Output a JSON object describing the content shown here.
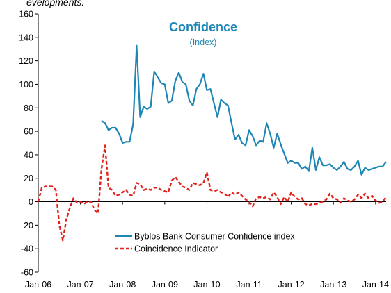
{
  "caption": "evelopments.",
  "chart_data": {
    "type": "line",
    "title": "Confidence",
    "subtitle": "(Index)",
    "title_color": "#1D86B5",
    "xlim": [
      "2006-01",
      "2014-04"
    ],
    "ylim": [
      -60,
      160
    ],
    "y_ticks": [
      -60,
      -40,
      -20,
      0,
      20,
      40,
      60,
      80,
      100,
      120,
      140,
      160
    ],
    "y_tick_labels": [
      "-60",
      "-40",
      "-20",
      "0",
      "20",
      "40",
      "60",
      "80",
      "100",
      "120",
      "140",
      "160"
    ],
    "x_ticks": [
      "2006-01",
      "2007-01",
      "2008-01",
      "2009-01",
      "2010-01",
      "2011-01",
      "2012-01",
      "2013-01",
      "2014-01"
    ],
    "x_tick_labels": [
      "Jan-06",
      "Jan-07",
      "Jan-08",
      "Jan-09",
      "Jan-10",
      "Jan-11",
      "Jan-12",
      "Jan-13",
      "Jan-14"
    ],
    "grid": false,
    "legend_position": "lower-center",
    "series": [
      {
        "name": "Byblos Bank Consumer Confidence index",
        "color": "#1D86B5",
        "style": "solid",
        "points": [
          [
            "2007-07",
            69
          ],
          [
            "2007-08",
            67
          ],
          [
            "2007-09",
            61
          ],
          [
            "2007-10",
            63
          ],
          [
            "2007-11",
            63
          ],
          [
            "2007-12",
            58
          ],
          [
            "2008-01",
            50
          ],
          [
            "2008-02",
            51
          ],
          [
            "2008-03",
            51
          ],
          [
            "2008-04",
            66
          ],
          [
            "2008-05",
            133
          ],
          [
            "2008-06",
            72
          ],
          [
            "2008-07",
            81
          ],
          [
            "2008-08",
            79
          ],
          [
            "2008-09",
            81
          ],
          [
            "2008-10",
            111
          ],
          [
            "2008-11",
            106
          ],
          [
            "2008-12",
            101
          ],
          [
            "2009-01",
            100
          ],
          [
            "2009-02",
            84
          ],
          [
            "2009-03",
            86
          ],
          [
            "2009-04",
            103
          ],
          [
            "2009-05",
            110
          ],
          [
            "2009-06",
            102
          ],
          [
            "2009-07",
            100
          ],
          [
            "2009-08",
            86
          ],
          [
            "2009-09",
            82
          ],
          [
            "2009-10",
            96
          ],
          [
            "2009-11",
            100
          ],
          [
            "2009-12",
            109
          ],
          [
            "2010-01",
            95
          ],
          [
            "2010-02",
            96
          ],
          [
            "2010-03",
            84
          ],
          [
            "2010-04",
            72
          ],
          [
            "2010-05",
            87
          ],
          [
            "2010-06",
            84
          ],
          [
            "2010-07",
            82
          ],
          [
            "2010-08",
            67
          ],
          [
            "2010-09",
            53
          ],
          [
            "2010-10",
            57
          ],
          [
            "2010-11",
            50
          ],
          [
            "2010-12",
            48
          ],
          [
            "2011-01",
            61
          ],
          [
            "2011-02",
            56
          ],
          [
            "2011-03",
            48
          ],
          [
            "2011-04",
            52
          ],
          [
            "2011-05",
            51
          ],
          [
            "2011-06",
            67
          ],
          [
            "2011-07",
            58
          ],
          [
            "2011-08",
            46
          ],
          [
            "2011-09",
            58
          ],
          [
            "2011-10",
            49
          ],
          [
            "2011-11",
            41
          ],
          [
            "2011-12",
            33
          ],
          [
            "2012-01",
            35
          ],
          [
            "2012-02",
            33
          ],
          [
            "2012-03",
            33
          ],
          [
            "2012-04",
            28
          ],
          [
            "2012-05",
            30
          ],
          [
            "2012-06",
            26
          ],
          [
            "2012-07",
            46
          ],
          [
            "2012-08",
            27
          ],
          [
            "2012-09",
            38
          ],
          [
            "2012-10",
            31
          ],
          [
            "2012-11",
            31
          ],
          [
            "2012-12",
            32
          ],
          [
            "2013-01",
            29
          ],
          [
            "2013-02",
            27
          ],
          [
            "2013-03",
            30
          ],
          [
            "2013-04",
            34
          ],
          [
            "2013-05",
            28
          ],
          [
            "2013-06",
            27
          ],
          [
            "2013-07",
            30
          ],
          [
            "2013-08",
            35
          ],
          [
            "2013-09",
            23
          ],
          [
            "2013-10",
            29
          ],
          [
            "2013-11",
            27
          ],
          [
            "2013-12",
            28
          ],
          [
            "2014-01",
            29
          ],
          [
            "2014-02",
            30
          ],
          [
            "2014-03",
            30
          ],
          [
            "2014-04",
            34
          ]
        ]
      },
      {
        "name": "Coincidence Indicator",
        "color": "#E32119",
        "style": "dashed",
        "points": [
          [
            "2006-01",
            0
          ],
          [
            "2006-02",
            12
          ],
          [
            "2006-03",
            13
          ],
          [
            "2006-04",
            13
          ],
          [
            "2006-05",
            13
          ],
          [
            "2006-06",
            10
          ],
          [
            "2006-07",
            -20
          ],
          [
            "2006-08",
            -33
          ],
          [
            "2006-09",
            -15
          ],
          [
            "2006-10",
            -5
          ],
          [
            "2006-11",
            3
          ],
          [
            "2006-12",
            -1
          ],
          [
            "2007-01",
            0
          ],
          [
            "2007-02",
            -2
          ],
          [
            "2007-03",
            0
          ],
          [
            "2007-04",
            0
          ],
          [
            "2007-05",
            -7
          ],
          [
            "2007-06",
            -10
          ],
          [
            "2007-07",
            28
          ],
          [
            "2007-08",
            48
          ],
          [
            "2007-09",
            12
          ],
          [
            "2007-10",
            10
          ],
          [
            "2007-11",
            5
          ],
          [
            "2007-12",
            6
          ],
          [
            "2008-01",
            8
          ],
          [
            "2008-02",
            10
          ],
          [
            "2008-03",
            6
          ],
          [
            "2008-04",
            5
          ],
          [
            "2008-05",
            16
          ],
          [
            "2008-06",
            15
          ],
          [
            "2008-07",
            10
          ],
          [
            "2008-08",
            11
          ],
          [
            "2008-09",
            10
          ],
          [
            "2008-10",
            12
          ],
          [
            "2008-11",
            12
          ],
          [
            "2008-12",
            10
          ],
          [
            "2009-01",
            9
          ],
          [
            "2009-02",
            8
          ],
          [
            "2009-03",
            18
          ],
          [
            "2009-04",
            21
          ],
          [
            "2009-05",
            17
          ],
          [
            "2009-06",
            13
          ],
          [
            "2009-07",
            12
          ],
          [
            "2009-08",
            10
          ],
          [
            "2009-09",
            16
          ],
          [
            "2009-10",
            15
          ],
          [
            "2009-11",
            14
          ],
          [
            "2009-12",
            16
          ],
          [
            "2010-01",
            25
          ],
          [
            "2010-02",
            10
          ],
          [
            "2010-03",
            9
          ],
          [
            "2010-04",
            10
          ],
          [
            "2010-05",
            8
          ],
          [
            "2010-06",
            7
          ],
          [
            "2010-07",
            4
          ],
          [
            "2010-08",
            8
          ],
          [
            "2010-09",
            6
          ],
          [
            "2010-10",
            8
          ],
          [
            "2010-11",
            5
          ],
          [
            "2010-12",
            2
          ],
          [
            "2011-01",
            0
          ],
          [
            "2011-02",
            -4
          ],
          [
            "2011-03",
            3
          ],
          [
            "2011-04",
            4
          ],
          [
            "2011-05",
            3
          ],
          [
            "2011-06",
            4
          ],
          [
            "2011-07",
            2
          ],
          [
            "2011-08",
            8
          ],
          [
            "2011-09",
            4
          ],
          [
            "2011-10",
            -2
          ],
          [
            "2011-11",
            4
          ],
          [
            "2011-12",
            0
          ],
          [
            "2012-01",
            8
          ],
          [
            "2012-02",
            4
          ],
          [
            "2012-03",
            2
          ],
          [
            "2012-04",
            3
          ],
          [
            "2012-05",
            -2
          ],
          [
            "2012-06",
            -3
          ],
          [
            "2012-07",
            -2
          ],
          [
            "2012-08",
            -2
          ],
          [
            "2012-09",
            -1
          ],
          [
            "2012-10",
            0
          ],
          [
            "2012-11",
            2
          ],
          [
            "2012-12",
            7
          ],
          [
            "2013-01",
            3
          ],
          [
            "2013-02",
            2
          ],
          [
            "2013-03",
            -1
          ],
          [
            "2013-04",
            3
          ],
          [
            "2013-05",
            1
          ],
          [
            "2013-06",
            0
          ],
          [
            "2013-07",
            2
          ],
          [
            "2013-08",
            6
          ],
          [
            "2013-09",
            3
          ],
          [
            "2013-10",
            7
          ],
          [
            "2013-11",
            3
          ],
          [
            "2013-12",
            5
          ],
          [
            "2014-01",
            1
          ],
          [
            "2014-02",
            -1
          ],
          [
            "2014-03",
            0
          ],
          [
            "2014-04",
            4
          ]
        ]
      }
    ]
  }
}
